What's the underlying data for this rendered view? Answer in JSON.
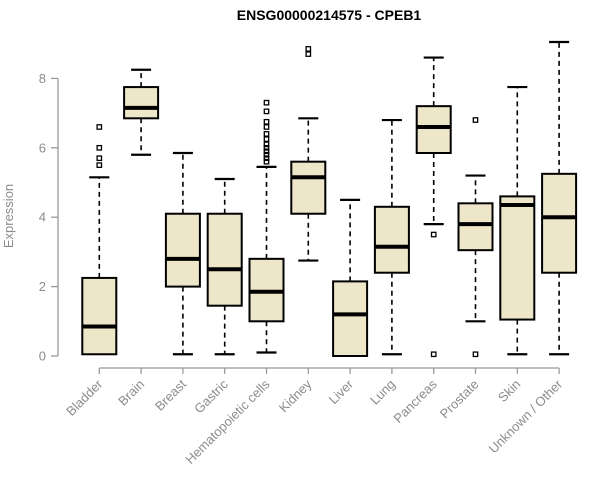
{
  "chart_data": {
    "type": "boxplot",
    "title": "ENSG00000214575 - CPEB1",
    "xlabel": "",
    "ylabel": "Expression",
    "ylim": [
      0,
      9.2
    ],
    "yticks": [
      0,
      2,
      4,
      6,
      8
    ],
    "grid": false,
    "legend": "none",
    "box_fill": "#EDE6C8",
    "box_stroke": "#000000",
    "axis_color": "#9a9a9a",
    "label_color": "#8c8c8c",
    "title_color": "#000000",
    "categories": [
      "Bladder",
      "Brain",
      "Breast",
      "Gastric",
      "Hematopoietic cells",
      "Kidney",
      "Liver",
      "Lung",
      "Pancreas",
      "Prostate",
      "Skin",
      "Unknown / Other"
    ],
    "series": [
      {
        "name": "Bladder",
        "whisker_low": 0.05,
        "q1": 0.05,
        "median": 0.85,
        "q3": 2.25,
        "whisker_high": 5.15,
        "outliers": [
          5.5,
          5.7,
          6.0,
          6.6
        ]
      },
      {
        "name": "Brain",
        "whisker_low": 5.8,
        "q1": 6.85,
        "median": 7.15,
        "q3": 7.75,
        "whisker_high": 8.25,
        "outliers": []
      },
      {
        "name": "Breast",
        "whisker_low": 0.05,
        "q1": 2.0,
        "median": 2.8,
        "q3": 4.1,
        "whisker_high": 5.85,
        "outliers": []
      },
      {
        "name": "Gastric",
        "whisker_low": 0.05,
        "q1": 1.45,
        "median": 2.5,
        "q3": 4.1,
        "whisker_high": 5.1,
        "outliers": []
      },
      {
        "name": "Hematopoietic cells",
        "whisker_low": 0.1,
        "q1": 1.0,
        "median": 1.85,
        "q3": 2.8,
        "whisker_high": 5.45,
        "outliers": [
          5.6,
          5.7,
          5.8,
          5.9,
          6.0,
          6.1,
          6.25,
          6.4,
          6.6,
          6.75,
          7.05,
          7.3
        ]
      },
      {
        "name": "Kidney",
        "whisker_low": 2.75,
        "q1": 4.1,
        "median": 5.15,
        "q3": 5.6,
        "whisker_high": 6.85,
        "outliers": [
          8.7,
          8.85
        ]
      },
      {
        "name": "Liver",
        "whisker_low": 0.0,
        "q1": 0.0,
        "median": 1.2,
        "q3": 2.15,
        "whisker_high": 4.5,
        "outliers": []
      },
      {
        "name": "Lung",
        "whisker_low": 0.05,
        "q1": 2.4,
        "median": 3.15,
        "q3": 4.3,
        "whisker_high": 6.8,
        "outliers": []
      },
      {
        "name": "Pancreas",
        "whisker_low": 3.8,
        "q1": 5.85,
        "median": 6.6,
        "q3": 7.2,
        "whisker_high": 8.6,
        "outliers": [
          3.5,
          0.05
        ]
      },
      {
        "name": "Prostate",
        "whisker_low": 1.0,
        "q1": 3.05,
        "median": 3.8,
        "q3": 4.4,
        "whisker_high": 5.2,
        "outliers": [
          6.8,
          0.05
        ]
      },
      {
        "name": "Skin",
        "whisker_low": 0.05,
        "q1": 1.05,
        "median": 4.35,
        "q3": 4.6,
        "whisker_high": 7.75,
        "outliers": []
      },
      {
        "name": "Unknown / Other",
        "whisker_low": 0.05,
        "q1": 2.4,
        "median": 4.0,
        "q3": 5.25,
        "whisker_high": 9.05,
        "outliers": []
      }
    ]
  }
}
